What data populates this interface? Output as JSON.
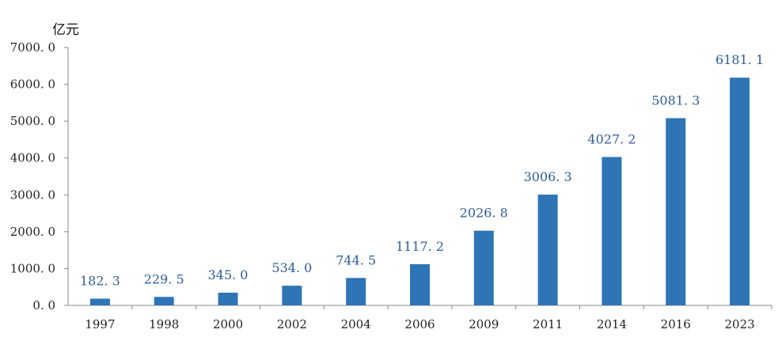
{
  "chart_data": {
    "type": "bar",
    "unit_label": "亿元",
    "categories": [
      "1997",
      "1998",
      "2000",
      "2002",
      "2004",
      "2006",
      "2009",
      "2011",
      "2014",
      "2016",
      "2023"
    ],
    "values": [
      182.3,
      229.5,
      345.0,
      534.0,
      744.5,
      1117.2,
      2026.8,
      3006.3,
      4027.2,
      5081.3,
      6181.1
    ],
    "value_labels": [
      "182. 3",
      "229. 5",
      "345. 0",
      "534. 0",
      "744. 5",
      "1117. 2",
      "2026. 8",
      "3006. 3",
      "4027. 2",
      "5081. 3",
      "6181. 1"
    ],
    "yticks": [
      0,
      1000,
      2000,
      3000,
      4000,
      5000,
      6000,
      7000
    ],
    "ytick_labels": [
      "0. 0",
      "1000. 0",
      "2000. 0",
      "3000. 0",
      "4000. 0",
      "5000. 0",
      "6000. 0",
      "7000. 0"
    ],
    "ylim": [
      0,
      7000
    ],
    "grid": false,
    "colors": {
      "bar": "#2E75B6",
      "label": "#2E5B9A",
      "axis": "#888888"
    }
  }
}
